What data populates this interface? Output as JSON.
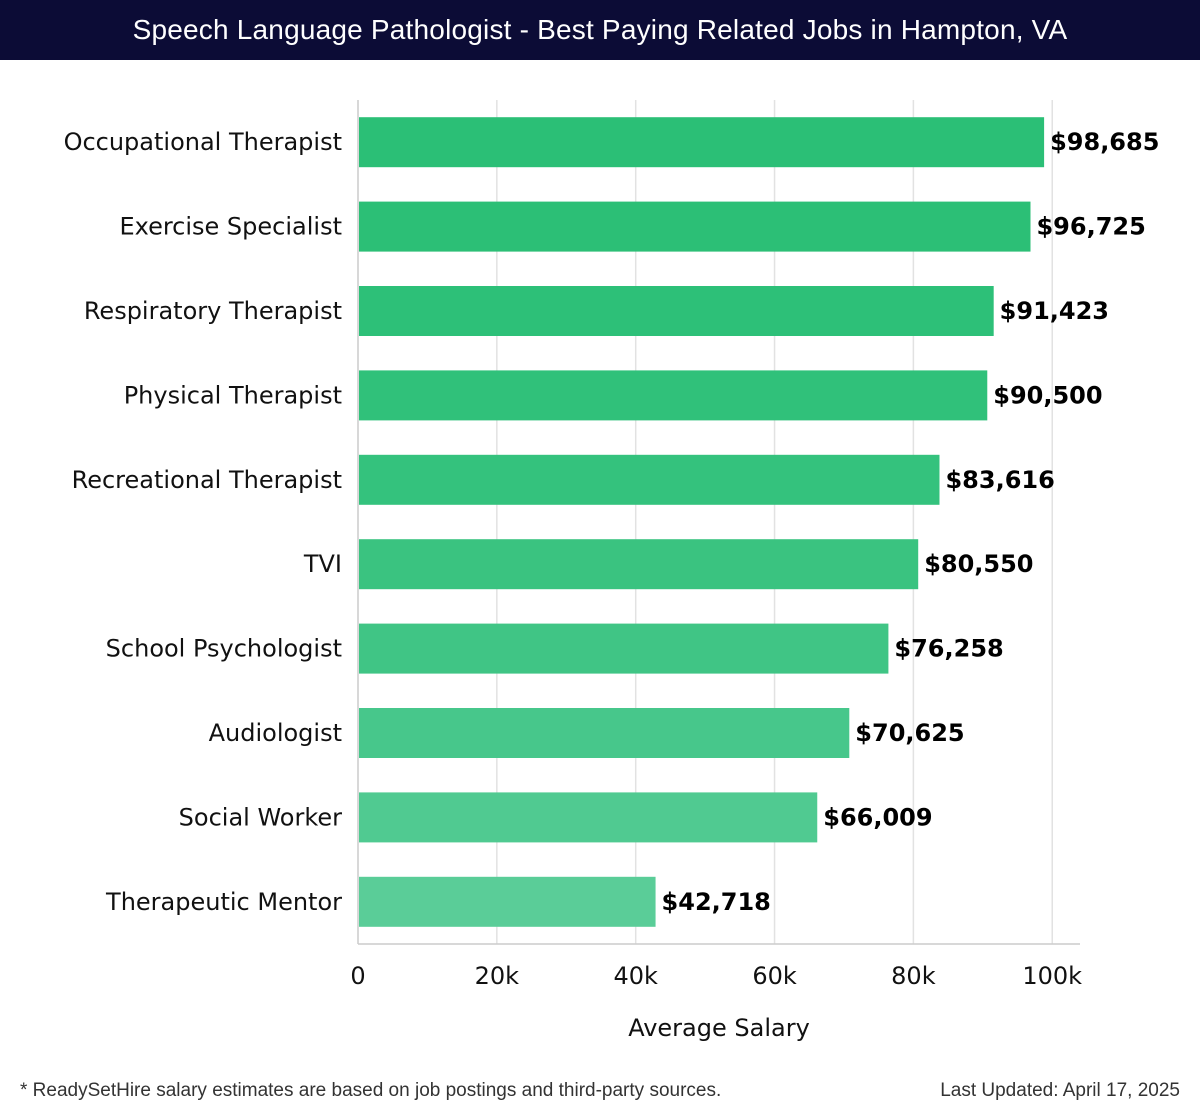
{
  "header": {
    "title": "Speech Language Pathologist - Best Paying Related Jobs in Hampton, VA"
  },
  "footer": {
    "note": "* ReadySetHire salary estimates are based on job postings and third-party sources.",
    "updated": "Last Updated: April 17, 2025"
  },
  "chart_data": {
    "type": "bar",
    "orientation": "horizontal",
    "categories": [
      "Occupational Therapist",
      "Exercise Specialist",
      "Respiratory Therapist",
      "Physical Therapist",
      "Recreational Therapist",
      "TVI",
      "School Psychologist",
      "Audiologist",
      "Social Worker",
      "Therapeutic Mentor"
    ],
    "values": [
      98685,
      96725,
      91423,
      90500,
      83616,
      80550,
      76258,
      70625,
      66009,
      42718
    ],
    "value_labels": [
      "$98,685",
      "$96,725",
      "$91,423",
      "$90,500",
      "$83,616",
      "$80,550",
      "$76,258",
      "$70,625",
      "$66,009",
      "$42,718"
    ],
    "xlabel": "Average Salary",
    "ylabel": "",
    "xlim": [
      0,
      104000
    ],
    "xticks": [
      0,
      20000,
      40000,
      60000,
      80000,
      100000
    ],
    "xtick_labels": [
      "0",
      "20k",
      "40k",
      "60k",
      "80k",
      "100k"
    ],
    "grid": "vertical",
    "colors": {
      "bar_top": "#2bbf76",
      "bar_bottom": "#5acd98",
      "grid": "#e2e2e2",
      "axis": "#cccccc",
      "title_bg": "#0c0c36"
    }
  }
}
